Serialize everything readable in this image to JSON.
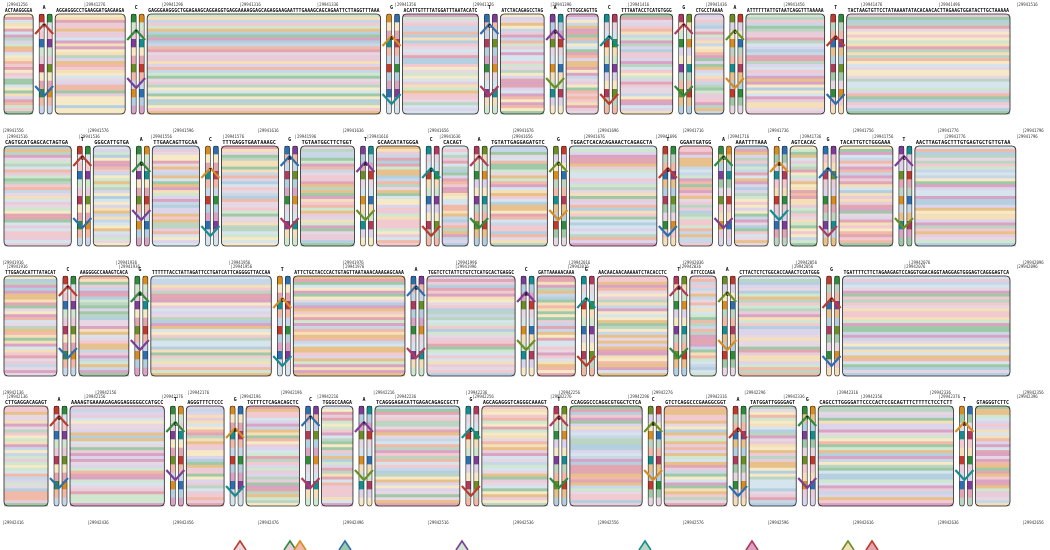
{
  "title": "",
  "colors": {
    "palette": [
      "#e7d7e3",
      "#d6e4ee",
      "#f1c9cf",
      "#f4dfb8",
      "#cfe6cf",
      "#e9ccd9",
      "#dcd4ea",
      "#f6e9c6",
      "#e2a6b3",
      "#bcd5c2",
      "#f0b9a8",
      "#c7d7e8",
      "#e8c08a",
      "#b4cfe0",
      "#d9a3c4",
      "#9fc9a6"
    ],
    "strong": [
      "#c0392b",
      "#2e8b3a",
      "#d98c1e",
      "#2c6fb0",
      "#7d3c98",
      "#138d90",
      "#b03a5b",
      "#6b8e23"
    ],
    "stroke": "#222222",
    "node_fill": "#f2f2f2"
  },
  "rows": [
    {
      "ticks": [
        "|29941256",
        "|29941276",
        "|29941296",
        "|29941316",
        "|29941336",
        "|29941356",
        "|29941376",
        "|29941396",
        "|29941416",
        "|29941436",
        "|29941456",
        "|29941476",
        "|29941496",
        "|29941516"
      ],
      "bottom_ticks": [
        "|29941556",
        "|29941576",
        "|29941596",
        "|29941616",
        "|29941636",
        "|29941656",
        "|29941676",
        "|29941696",
        "|29941716",
        "|29941736",
        "|29941756",
        "|29941776",
        "|29941796"
      ],
      "blocks": [
        {
          "label": "ACTAAGGGGA"
        },
        {
          "label": "AGGAGGGCCTGAAGGATGAGAAGA"
        },
        {
          "label": "GAGGGAAGGGCTGGAGAAGCAGGAGGTGAGGAAAAGGAGCAGAGGAAGAATTTGAAAGCAGCAGAATTCTTAGGTTTAAA"
        },
        {
          "label": "ACATTGTTTTATGGATTTAATACATC"
        },
        {
          "label": "ATCTACAGAGCCTAG"
        },
        {
          "label": "CTTGGCAGTTG"
        },
        {
          "label": "TTTAATACCTCATGTGGG"
        },
        {
          "label": "CTGCCTAAAA"
        },
        {
          "label": "ATTTTTTATTGTAATCAGGTTTAAAAA"
        },
        {
          "label": "TACTAAGTGTTCCTATAAAATATACACAACACTTAGAAGTGGATACTTGCTAAAAA"
        }
      ],
      "snps": [
        {
          "ref": "A",
          "alt": "T"
        },
        {
          "ref": "C",
          "alt": "T"
        },
        {
          "ref": "G",
          "alt": "A"
        },
        {
          "ref": "T",
          "alt": "C"
        },
        {
          "ref": "A",
          "alt": "G"
        },
        {
          "ref": "C",
          "alt": "T"
        },
        {
          "ref": "G",
          "alt": "T"
        },
        {
          "ref": "A",
          "alt": "C"
        },
        {
          "ref": "T",
          "alt": "G"
        },
        {
          "ref": "G",
          "alt": "A"
        },
        {
          "ref": "C",
          "alt": "A"
        },
        {
          "ref": "A",
          "alt": "G"
        }
      ]
    },
    {
      "ticks": [
        "|29941516",
        "|29941536",
        "|29941556",
        "|29941576",
        "|29941596",
        "|29941616",
        "|29941636",
        "|29941656",
        "|29941676",
        "|29941696",
        "|29941716",
        "|29941736",
        "|29941756",
        "|29941776",
        "|29941796"
      ],
      "bottom_ticks": [
        "|29941916",
        "|29941936",
        "|29941956",
        "|29941976",
        "|29941996",
        "|29942016",
        "|29942036",
        "|29942056",
        "|29942076",
        "|29942096"
      ],
      "blocks": [
        {
          "label": "CAGTGCATGAGCACTAGTGA"
        },
        {
          "label": "GGGCATTGTGA"
        },
        {
          "label": "TTGAACAGTTGCAA"
        },
        {
          "label": "TTTGAGGTGAATAAAGC"
        },
        {
          "label": "TGTAATGGCTTCTGGT"
        },
        {
          "label": "GCAACATATGGGA"
        },
        {
          "label": "CACAGT"
        },
        {
          "label": "TGTATTGAGGAGATGTC"
        },
        {
          "label": "TGGACTCACACAGAAACTCAGAGCTA"
        },
        {
          "label": "GGAATGATGG"
        },
        {
          "label": "AAATTTTAAA"
        },
        {
          "label": "AGTCACAC"
        },
        {
          "label": "TACATTGTCTGGGAAA"
        },
        {
          "label": "AACTTAGTAGCTTTGTGAGTGCTGTTGTAA"
        }
      ],
      "snps": [
        {
          "ref": "T",
          "alt": "C"
        },
        {
          "ref": "A",
          "alt": "G"
        },
        {
          "ref": "C",
          "alt": "T"
        },
        {
          "ref": "G",
          "alt": "A"
        },
        {
          "ref": "T",
          "alt": "A"
        },
        {
          "ref": "C",
          "alt": "G"
        },
        {
          "ref": "A",
          "alt": "T"
        },
        {
          "ref": "G",
          "alt": "C"
        },
        {
          "ref": "T",
          "alt": "G"
        },
        {
          "ref": "A",
          "alt": "C"
        },
        {
          "ref": "C",
          "alt": "A"
        },
        {
          "ref": "G",
          "alt": "T"
        },
        {
          "ref": "T",
          "alt": "C"
        },
        {
          "ref": "A",
          "alt": "G"
        }
      ]
    },
    {
      "ticks": [
        "|29941916",
        "|29941936",
        "|29941956",
        "|29941976",
        "|29941996",
        "|29942016",
        "|29942036",
        "|29942056",
        "|29942076",
        "|29942096"
      ],
      "bottom_ticks": [
        "|29942136",
        "|29942156",
        "|29942176",
        "|29942196",
        "|29942216",
        "|29942236",
        "|29942256",
        "|29942276",
        "|29942296",
        "|29942316",
        "|29942336",
        "|29942356"
      ],
      "blocks": [
        {
          "label": "TTGGACACATTTATACAT"
        },
        {
          "label": "AAGGGGCCAAAGTCACA"
        },
        {
          "label": "TTTTTTACCTATTAGATTCCTGATCATTCAGGGGTTACCAA"
        },
        {
          "label": "ATTCTGCTACCCACTGTAGTTAATAAACAAAGAGCAAA"
        },
        {
          "label": "TGGTCTCTATTCTGTCTCATGCACTGAGGC"
        },
        {
          "label": "GATTAAAAACAAA"
        },
        {
          "label": "AACAACAACAAAAATCTACACCTC"
        },
        {
          "label": "ATTCCCAGA"
        },
        {
          "label": "CTTACTCTCTGGCACCAAACTCCATGGG"
        },
        {
          "label": "TGATTTTCTTCTAGAAGAGTCCAGGTGGACAGGTAAGGAGTGGGAGTCAGGGAGTCA"
        }
      ],
      "snps": [
        {
          "ref": "C",
          "alt": "T"
        },
        {
          "ref": "G",
          "alt": "A"
        },
        {
          "ref": "T",
          "alt": "C"
        },
        {
          "ref": "A",
          "alt": "G"
        },
        {
          "ref": "C",
          "alt": "A"
        },
        {
          "ref": "G",
          "alt": "T"
        },
        {
          "ref": "T",
          "alt": "A"
        },
        {
          "ref": "A",
          "alt": "C"
        },
        {
          "ref": "G",
          "alt": "C"
        },
        {
          "ref": "C",
          "alt": "G"
        }
      ]
    },
    {
      "ticks": [
        "|29942136",
        "|29942156",
        "|29942176",
        "|29942196",
        "|29942216",
        "|29942236",
        "|29942256",
        "|29942276",
        "|29942296",
        "|29942316",
        "|29942336",
        "|29942356",
        "|29942376",
        "|29942396"
      ],
      "bottom_ticks": [
        "|29942416",
        "|29942436",
        "|29942456",
        "|29942476",
        "|29942496",
        "|29942516",
        "|29942536",
        "|29942556",
        "|29942576",
        "|29942596",
        "|29942616",
        "|29942636",
        "|29942656"
      ],
      "blocks": [
        {
          "label": "CTTGAGGACAGAGT"
        },
        {
          "label": "AAAAGTGAAAAGAGAGGAGGGGGCCATGCC"
        },
        {
          "label": "AGGGTTTCTCCC"
        },
        {
          "label": "TGTTTCTCAGACAGCTC"
        },
        {
          "label": "TGGGCCAAGA"
        },
        {
          "label": "TCAGGGAGACATTGAGACAGAGCGCTT"
        },
        {
          "label": "AGCAGAGGGTCAGGGCAAAGT"
        },
        {
          "label": "CCAGGGCCCAGGCGTGGCTCTCA"
        },
        {
          "label": "GTCTCAGGCCCGAAGGCGGT"
        },
        {
          "label": "TATGGATTGGGGAGT"
        },
        {
          "label": "CAGCCTTGGGGATTCCCCACTCCGCAGTTTCTTTTCTCCTCTT"
        },
        {
          "label": "GTAGGGTCTTC"
        }
      ],
      "snps": [
        {
          "ref": "A",
          "alt": "G"
        },
        {
          "ref": "T",
          "alt": "C"
        },
        {
          "ref": "G",
          "alt": "A"
        },
        {
          "ref": "C",
          "alt": "T"
        },
        {
          "ref": "A",
          "alt": "T"
        },
        {
          "ref": "G",
          "alt": "C"
        },
        {
          "ref": "T",
          "alt": "G"
        },
        {
          "ref": "C",
          "alt": "A"
        },
        {
          "ref": "A",
          "alt": "C"
        },
        {
          "ref": "G",
          "alt": "T"
        },
        {
          "ref": "T",
          "alt": "A"
        }
      ]
    }
  ]
}
